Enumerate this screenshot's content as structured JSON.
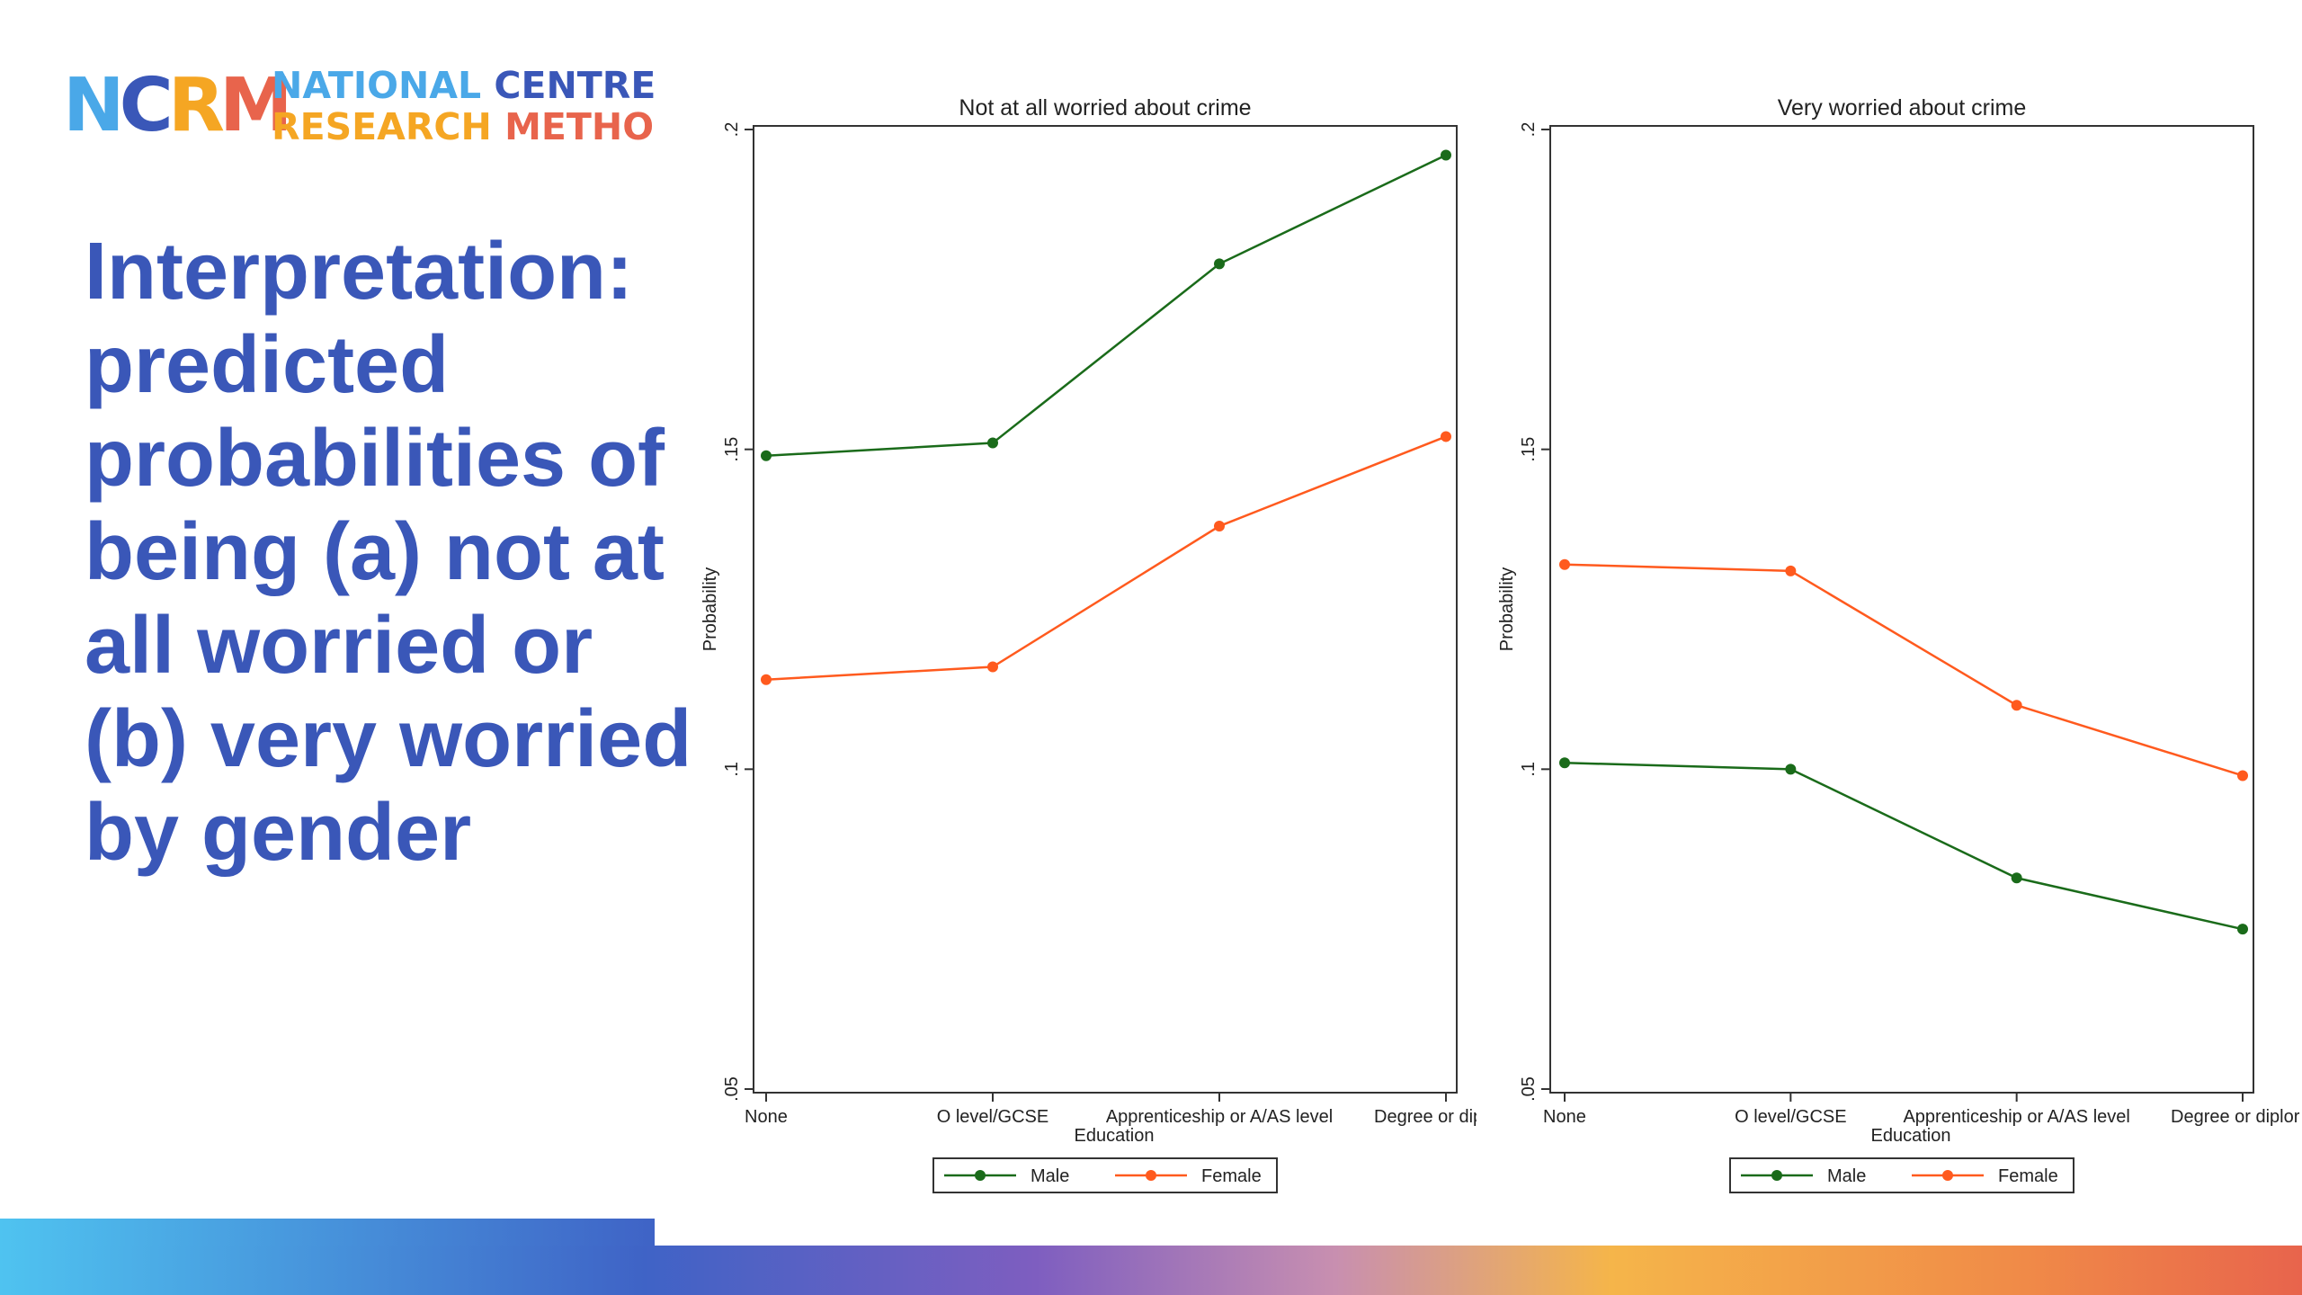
{
  "logo": {
    "mark_letters": [
      "N",
      "C",
      "R",
      "M"
    ],
    "line1_a": "NATIONAL",
    "line1_b": "CENTRE",
    "line2_a": "RESEARCH",
    "line2_b": "METHO"
  },
  "heading": "Interpretation: predicted probabilities of being (a) not at all worried or (b) very worried by gender",
  "colors": {
    "heading": "#3a57b8",
    "male": "#1a6b1a",
    "female": "#ff5a1e",
    "logo_blue": "#4aa8e8",
    "logo_orange": "#f5a623",
    "logo_navy": "#3a57b8"
  },
  "chart_data": [
    {
      "type": "line",
      "title": "Not at all worried about crime",
      "xlabel": "Education",
      "ylabel": "Probability",
      "categories": [
        "None",
        "O level/GCSE",
        "Apprenticeship or A/AS level",
        "Degree or dip"
      ],
      "yticks": [
        ".05",
        ".1",
        ".15",
        ".2"
      ],
      "ylim": [
        0.05,
        0.2
      ],
      "series": [
        {
          "name": "Male",
          "values": [
            0.149,
            0.151,
            0.179,
            0.196
          ]
        },
        {
          "name": "Female",
          "values": [
            0.114,
            0.116,
            0.138,
            0.152
          ]
        }
      ],
      "legend": [
        "Male",
        "Female"
      ],
      "legend_position": "bottom",
      "grid": false
    },
    {
      "type": "line",
      "title": "Very worried about crime",
      "xlabel": "Education",
      "ylabel": "Probability",
      "categories": [
        "None",
        "O level/GCSE",
        "Apprenticeship or A/AS level",
        "Degree or diplor"
      ],
      "yticks": [
        ".05",
        ".1",
        ".15",
        ".2"
      ],
      "ylim": [
        0.05,
        0.2
      ],
      "series": [
        {
          "name": "Male",
          "values": [
            0.101,
            0.1,
            0.083,
            0.075
          ]
        },
        {
          "name": "Female",
          "values": [
            0.132,
            0.131,
            0.11,
            0.099
          ]
        }
      ],
      "legend": [
        "Male",
        "Female"
      ],
      "legend_position": "bottom",
      "grid": false
    }
  ]
}
